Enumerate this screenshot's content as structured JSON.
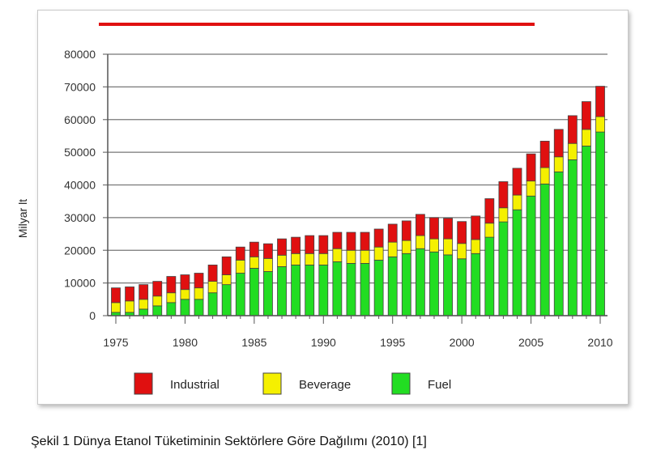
{
  "chart_data": {
    "type": "bar",
    "stacked": true,
    "title": "",
    "xlabel": "",
    "ylabel": "Milyar lt",
    "ylim": [
      0,
      80000
    ],
    "yticks": [
      0,
      10000,
      20000,
      30000,
      40000,
      50000,
      60000,
      70000,
      80000
    ],
    "xtick_labels": [
      "1975",
      "1980",
      "1985",
      "1990",
      "1995",
      "2000",
      "2005",
      "2010"
    ],
    "grid": true,
    "legend_position": "bottom",
    "categories": [
      1975,
      1976,
      1977,
      1978,
      1979,
      1980,
      1981,
      1982,
      1983,
      1984,
      1985,
      1986,
      1987,
      1988,
      1989,
      1990,
      1991,
      1992,
      1993,
      1994,
      1995,
      1996,
      1997,
      1998,
      1999,
      2000,
      2001,
      2002,
      2003,
      2004,
      2005,
      2006,
      2007,
      2008,
      2009,
      2010
    ],
    "series": [
      {
        "name": "Fuel",
        "color": "#22dd22",
        "values": [
          1000,
          1000,
          2000,
          3000,
          4000,
          5000,
          5000,
          7000,
          9500,
          13000,
          14500,
          13500,
          15000,
          15500,
          15500,
          15500,
          16500,
          16000,
          16000,
          17000,
          18000,
          19000,
          20500,
          19500,
          18600,
          17400,
          19000,
          24000,
          28700,
          32400,
          36600,
          40300,
          44000,
          47700,
          51900,
          56200
        ]
      },
      {
        "name": "Beverage",
        "color": "#f5f000",
        "values": [
          3000,
          3500,
          3000,
          3000,
          3000,
          3000,
          3500,
          3500,
          3000,
          4000,
          3500,
          4000,
          3500,
          3500,
          3500,
          3500,
          4000,
          4000,
          4000,
          4000,
          4500,
          4000,
          4000,
          4000,
          4900,
          4700,
          4300,
          4300,
          4300,
          4500,
          4600,
          5000,
          4600,
          5000,
          5100,
          4700
        ]
      },
      {
        "name": "Industrial",
        "color": "#e01010",
        "values": [
          4500,
          4300,
          4500,
          4500,
          5000,
          4500,
          4500,
          5000,
          5500,
          4000,
          4500,
          4500,
          5000,
          5000,
          5500,
          5500,
          5000,
          5500,
          5500,
          5500,
          5500,
          6000,
          6500,
          6500,
          6300,
          6700,
          7200,
          7500,
          8000,
          8200,
          8300,
          8100,
          8400,
          8500,
          8500,
          9300
        ]
      }
    ],
    "legend_order": [
      "Industrial",
      "Beverage",
      "Fuel"
    ]
  },
  "caption": "Şekil 1  Dünya Etanol Tüketiminin Sektörlere Göre Dağılımı (2010) [1]"
}
